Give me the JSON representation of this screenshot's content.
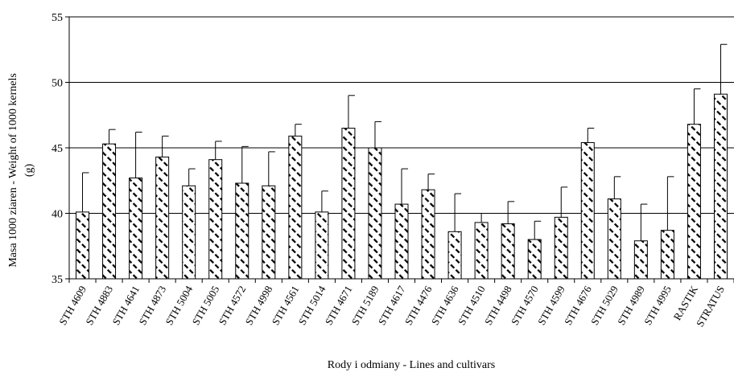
{
  "chart_data": {
    "type": "bar",
    "xlabel": "Rody i odmiany - Lines and cultivars",
    "ylabel_line1": "Masa 1000 ziaren - Weight of 1000 kernels",
    "ylabel_line2": "(g)",
    "ylim": [
      35,
      55
    ],
    "yticks": [
      35,
      40,
      45,
      50,
      55
    ],
    "grid": true,
    "bar_pattern": "diagonal-hatch",
    "colors": {
      "hatch": "#000000",
      "bar_fill": "#ffffff",
      "axis": "#000000"
    },
    "categories": [
      "STH 4609",
      "STH 4883",
      "STH 4641",
      "STH 4873",
      "STH 5004",
      "STH 5005",
      "STH 4572",
      "STH 4998",
      "STH 4561",
      "STH 5014",
      "STH 4671",
      "STH 5189",
      "STH 4617",
      "STH 4476",
      "STH 4636",
      "STH 4510",
      "STH 4498",
      "STH 4570",
      "STH 4599",
      "STH 4676",
      "STH 5029",
      "STH 4989",
      "STH 4995",
      "RASTIK",
      "STRATUS"
    ],
    "values": [
      40.1,
      45.3,
      42.7,
      44.3,
      42.1,
      44.1,
      42.3,
      42.1,
      45.9,
      40.1,
      46.5,
      45.0,
      40.7,
      41.8,
      38.6,
      39.3,
      39.2,
      38.0,
      39.7,
      45.4,
      41.1,
      37.9,
      38.7,
      46.8,
      49.1
    ],
    "errors": [
      3.0,
      1.1,
      3.5,
      1.6,
      1.3,
      1.4,
      2.8,
      2.6,
      0.9,
      1.6,
      2.5,
      2.0,
      2.7,
      1.2,
      2.9,
      0.7,
      1.7,
      1.4,
      2.3,
      1.1,
      1.7,
      2.8,
      4.1,
      2.7,
      3.8
    ]
  }
}
